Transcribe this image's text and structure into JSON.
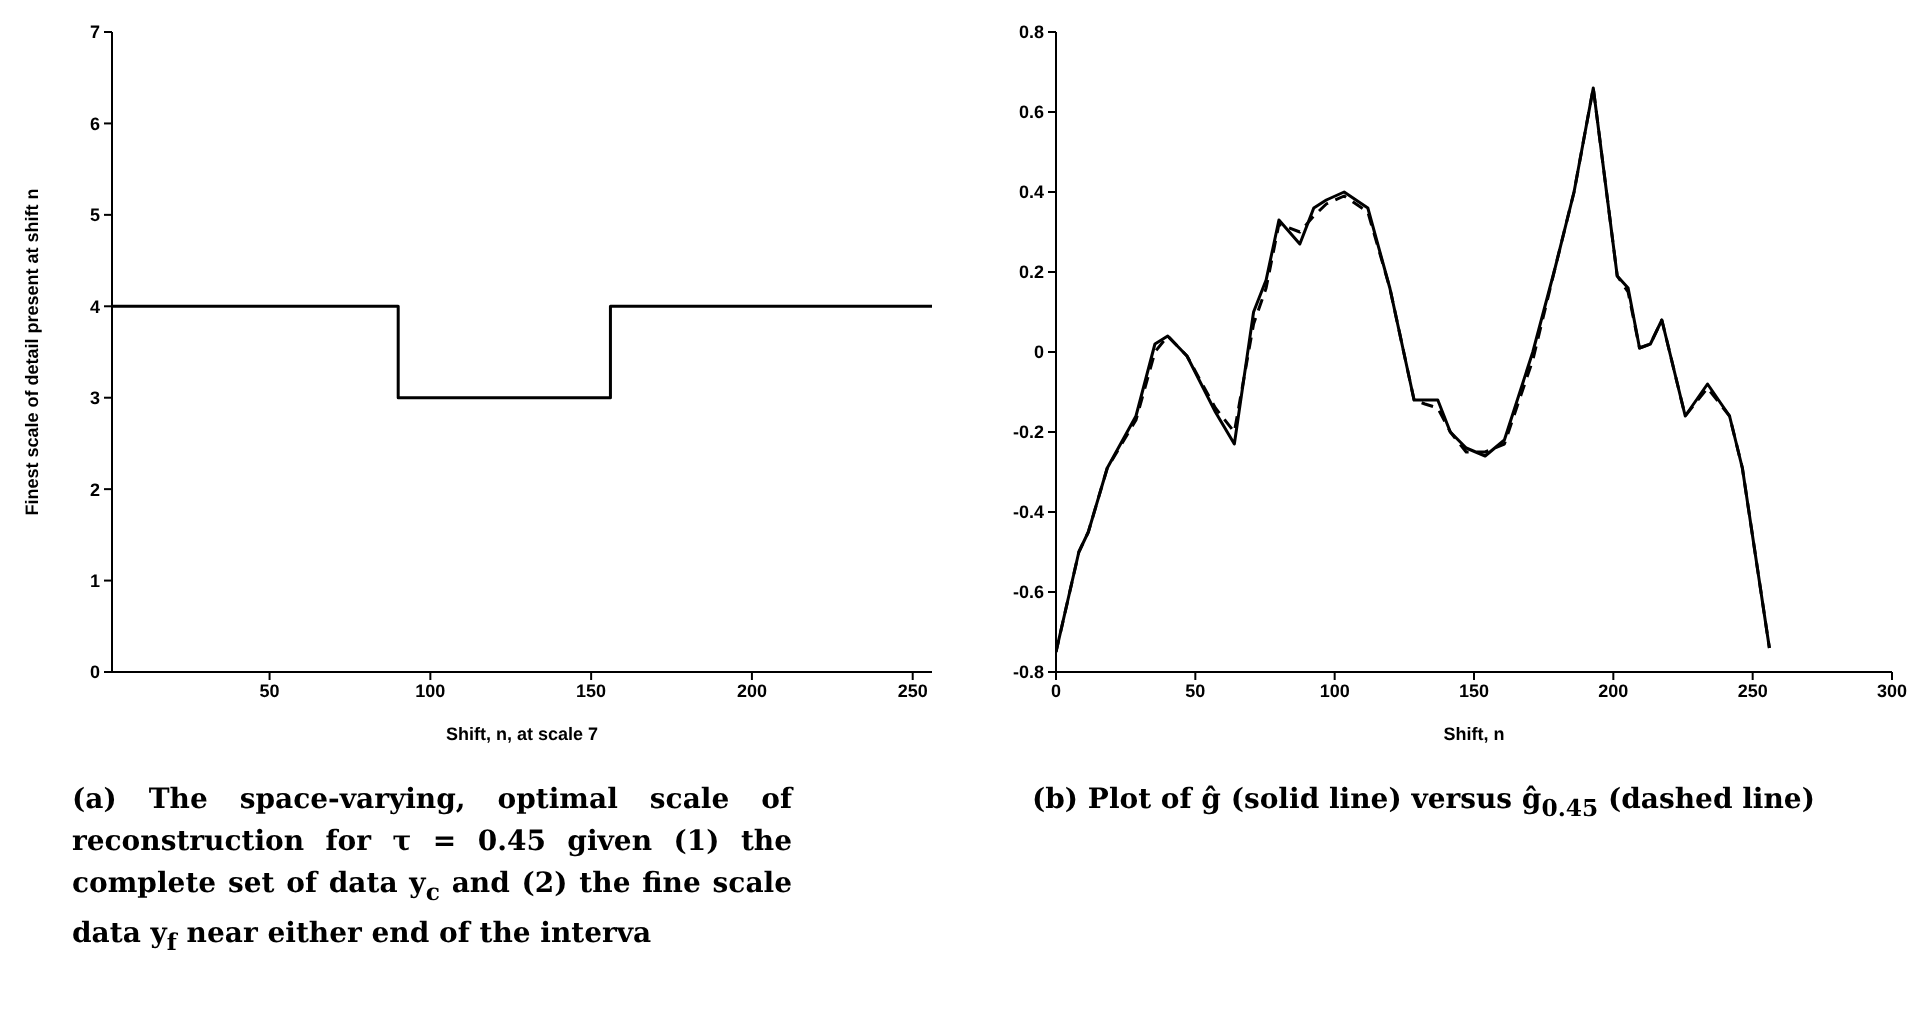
{
  "chart_data": [
    {
      "type": "step",
      "xlabel": "Shift, n, at scale 7",
      "ylabel": "Finest scale of detail present at shift n",
      "series": [
        {
          "color": "#000000",
          "x": [
            1,
            90,
            156,
            256
          ],
          "values": [
            4,
            3,
            4,
            4
          ]
        }
      ],
      "xlim": [
        1,
        256
      ],
      "xticks": [
        50,
        100,
        150,
        200,
        250
      ],
      "ylim": [
        0,
        7
      ],
      "yticks": [
        0,
        1,
        2,
        3,
        4,
        5,
        6,
        7
      ],
      "grid": false,
      "legend": false,
      "marker": "none",
      "annotations": [
        "(a) The space-varying, optimal scale of reconstruction for τ = 0.45 given (1) the complete set of data y$_{c}$ and (2) the fine scale data y$_{f}$ near either end of the interva"
      ]
    },
    {
      "type": "line",
      "xlabel": "Shift, n",
      "series": [
        {
          "color": "#000000",
          "line_style": "solid",
          "x": [
            0,
            8.2,
            11.6,
            18.4,
            28.7,
            35.5,
            40.1,
            47,
            57.2,
            64,
            70.9,
            75.4,
            80,
            87.5,
            92.5,
            97,
            103.4,
            111.9,
            119.8,
            128.5,
            132.4,
            137,
            141.5,
            147.2,
            154,
            160.9,
            171.1,
            179.1,
            185.9,
            192.8,
            201.4,
            205.3,
            209.4,
            213.3,
            217.4,
            225.8,
            233.8,
            241.7,
            246.3,
            256
          ],
          "values": [
            -0.75,
            -0.5,
            -0.45,
            -0.29,
            -0.16,
            0.02,
            0.04,
            -0.01,
            -0.15,
            -0.23,
            0.1,
            0.18,
            0.33,
            0.27,
            0.36,
            0.38,
            0.4,
            0.36,
            0.16,
            -0.12,
            -0.12,
            -0.12,
            -0.2,
            -0.24,
            -0.26,
            -0.22,
            0,
            0.21,
            0.4,
            0.66,
            0.19,
            0.16,
            0.01,
            0.02,
            0.08,
            -0.16,
            -0.08,
            -0.16,
            -0.29,
            -0.74
          ]
        },
        {
          "color": "#000000",
          "line_style": "dashed",
          "x": [
            0,
            8.2,
            11.6,
            18.4,
            28.7,
            35.5,
            40.1,
            47,
            57.2,
            64,
            70.9,
            75.4,
            80,
            87.5,
            92.5,
            97,
            103.4,
            111.9,
            119.8,
            128.5,
            132.4,
            137,
            141.5,
            147.2,
            154,
            160.9,
            171.1,
            179.1,
            185.9,
            192.8,
            201.4,
            205.3,
            209.4,
            213.3,
            217.4,
            225.8,
            233.8,
            241.7,
            246.3,
            256
          ],
          "values": [
            -0.75,
            -0.5,
            -0.45,
            -0.29,
            -0.17,
            0,
            0.04,
            -0.01,
            -0.14,
            -0.2,
            0.07,
            0.16,
            0.32,
            0.3,
            0.34,
            0.37,
            0.39,
            0.35,
            0.16,
            -0.12,
            -0.13,
            -0.14,
            -0.2,
            -0.25,
            -0.25,
            -0.23,
            -0.02,
            0.21,
            0.4,
            0.66,
            0.19,
            0.15,
            0.01,
            0.02,
            0.08,
            -0.16,
            -0.09,
            -0.16,
            -0.29,
            -0.74
          ]
        }
      ],
      "xlim": [
        0,
        300
      ],
      "xticks": [
        0,
        50,
        100,
        150,
        200,
        250,
        300
      ],
      "ylim": [
        -0.8,
        0.8
      ],
      "yticks": [
        -0.8,
        -0.6,
        -0.4,
        -0.2,
        0,
        0.2,
        0.4,
        0.6,
        0.8
      ],
      "grid": false,
      "legend": false,
      "marker": "none",
      "annotations": [
        "(b) Plot of ĝ (solid line) versus ĝ$_{0.45}$ (dashed line)"
      ]
    }
  ]
}
